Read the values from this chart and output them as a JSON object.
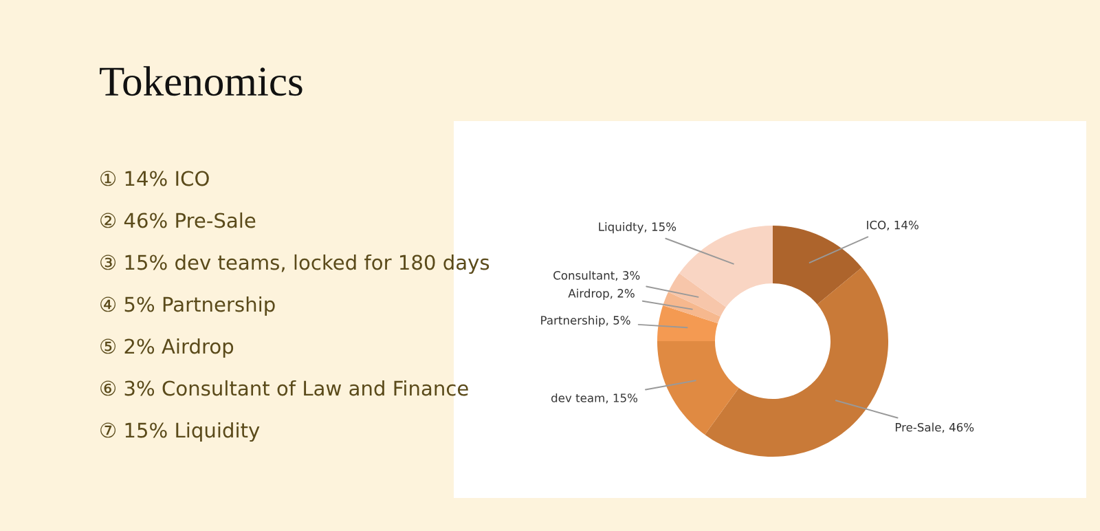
{
  "chart_data": {
    "type": "donut",
    "title": "Tokenomics",
    "categories": [
      "ICO",
      "Pre-Sale",
      "dev team",
      "Partnership",
      "Airdrop",
      "Consultant",
      "Liquidty"
    ],
    "values": [
      14,
      46,
      15,
      5,
      2,
      3,
      15
    ],
    "colors": [
      "#ad642c",
      "#c97a38",
      "#e08a42",
      "#f49a52",
      "#f6b88e",
      "#f7c6aa",
      "#f9d5c3"
    ],
    "value_labels": [
      "14%",
      "46%",
      "15%",
      "5%",
      "2%",
      "3%",
      "15%"
    ],
    "annotations": [
      "① 14% ICO",
      "② 46% Pre-Sale",
      "③ 15% dev teams, locked for 180 days",
      "④ 5% Partnership",
      "⑤ 2% Airdrop",
      "⑥ 3% Consultant of Law and Finance",
      "⑦ 15% Liquidity"
    ]
  }
}
